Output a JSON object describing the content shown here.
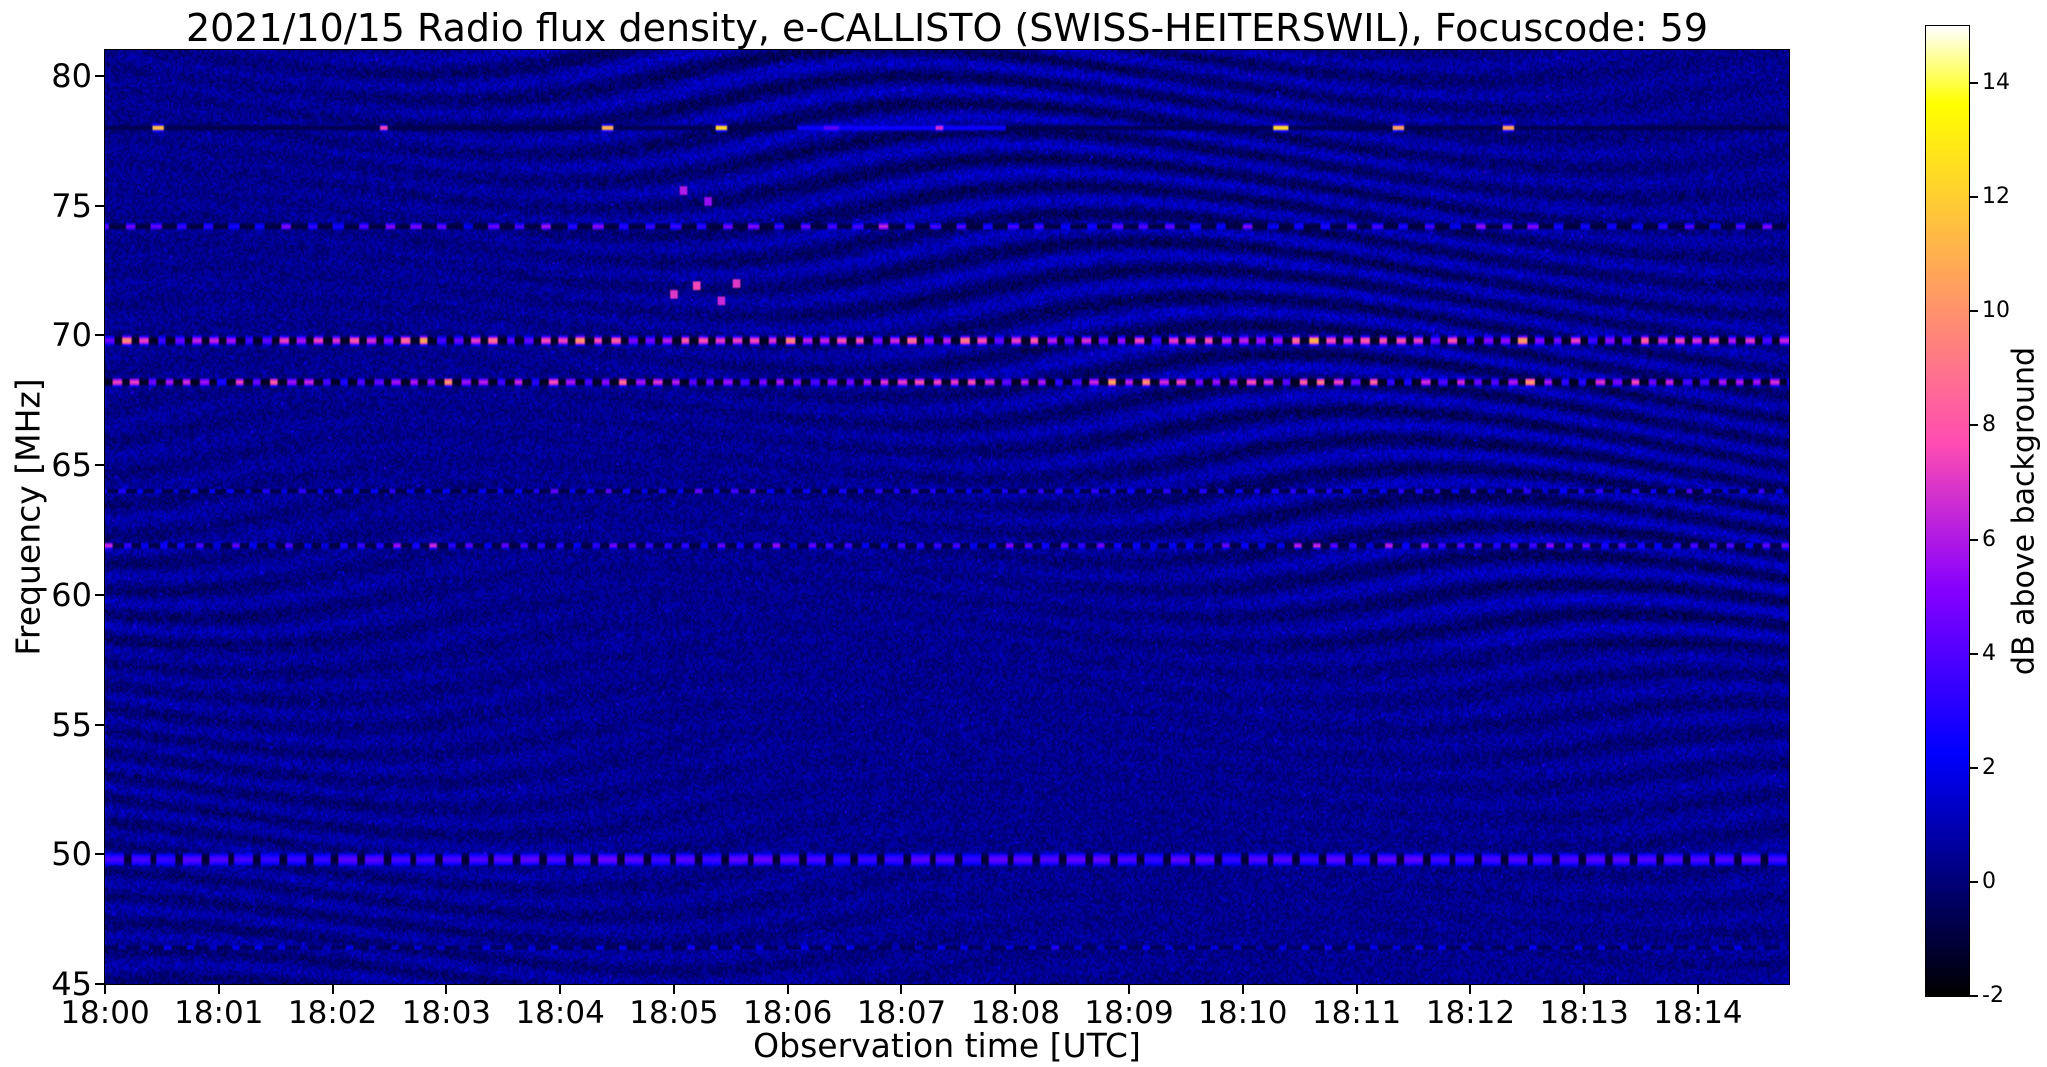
{
  "chart_data": {
    "type": "heatmap",
    "title": "2021/10/15  Radio flux density, e-CALLISTO (SWISS-HEITERSWIL), Focuscode: 59",
    "xlabel": "Observation time [UTC]",
    "ylabel": "Frequency [MHz]",
    "colorbar_label": "dB above background",
    "x_ticks": [
      "18:00",
      "18:01",
      "18:02",
      "18:03",
      "18:04",
      "18:05",
      "18:06",
      "18:07",
      "18:08",
      "18:09",
      "18:10",
      "18:11",
      "18:12",
      "18:13",
      "18:14"
    ],
    "x_tick_seconds": [
      0,
      60,
      120,
      180,
      240,
      300,
      360,
      420,
      480,
      540,
      600,
      660,
      720,
      780,
      840
    ],
    "x_range_s": [
      0,
      888
    ],
    "y_range_mhz": [
      45,
      81
    ],
    "y_ticks": [
      80,
      75,
      70,
      65,
      60,
      55,
      50,
      45
    ],
    "value_range_db": [
      -2,
      15
    ],
    "colorbar_ticks": [
      14,
      12,
      10,
      8,
      6,
      4,
      2,
      0,
      -2
    ],
    "colormap": "gnuplot2",
    "background": {
      "base_db": 0.35,
      "noise_db": 1.5,
      "fringe_amp_db": 1.0,
      "fringe_spacing_mhz": 1.05
    },
    "spectral_lines": [
      {
        "freq_mhz": 78.0,
        "type": "bursts",
        "line_db": -0.7,
        "halfwidth_mhz": 0.14
      },
      {
        "freq_mhz": 74.2,
        "type": "dashed",
        "period_s": 13.7,
        "duty": 0.38,
        "mean_db": 3.6,
        "var_db": 1.8,
        "boost_db": 2.2,
        "gap_db": -1.0,
        "halfwidth_mhz": 0.14,
        "phase_s": 3
      },
      {
        "freq_mhz": 69.8,
        "type": "dashed",
        "period_s": 9.2,
        "duty": 0.52,
        "mean_db": 6.3,
        "var_db": 2.6,
        "boost_db": 3.0,
        "gap_db": -1.5,
        "halfwidth_mhz": 0.2,
        "phase_s": 0
      },
      {
        "freq_mhz": 68.2,
        "type": "dashed",
        "period_s": 9.2,
        "duty": 0.48,
        "mean_db": 5.6,
        "var_db": 2.6,
        "boost_db": 3.0,
        "gap_db": -1.5,
        "halfwidth_mhz": 0.18,
        "phase_s": 5
      },
      {
        "freq_mhz": 64.0,
        "type": "dashed",
        "period_s": 9.5,
        "duty": 0.36,
        "mean_db": 2.6,
        "var_db": 1.0,
        "boost_db": 1.2,
        "gap_db": -0.9,
        "halfwidth_mhz": 0.12,
        "phase_s": 2
      },
      {
        "freq_mhz": 61.9,
        "type": "dashed",
        "period_s": 9.5,
        "duty": 0.42,
        "mean_db": 3.2,
        "var_db": 1.5,
        "boost_db": 2.5,
        "gap_db": -0.9,
        "halfwidth_mhz": 0.14,
        "phase_s": 9
      },
      {
        "freq_mhz": 49.8,
        "type": "dashed",
        "period_s": 13.7,
        "duty": 0.72,
        "mean_db": 3.8,
        "var_db": 0.6,
        "boost_db": 0.5,
        "gap_db": -1.2,
        "halfwidth_mhz": 0.28,
        "phase_s": 0
      },
      {
        "freq_mhz": 46.4,
        "type": "dashed",
        "period_s": 12.0,
        "duty": 0.3,
        "mean_db": 1.8,
        "var_db": 0.8,
        "boost_db": 0.8,
        "gap_db": -0.6,
        "halfwidth_mhz": 0.1,
        "phase_s": 5
      }
    ],
    "bursts_78mhz": [
      {
        "t_s": 28,
        "db": 12.5,
        "width_s": 6
      },
      {
        "t_s": 147,
        "db": 8.0,
        "width_s": 5
      },
      {
        "t_s": 265,
        "db": 12.0,
        "width_s": 6
      },
      {
        "t_s": 325,
        "db": 13.5,
        "width_s": 7
      },
      {
        "t_s": 383,
        "db": 4.5,
        "width_s": 8
      },
      {
        "t_s": 420,
        "db": 2.8,
        "width_s": 110
      },
      {
        "t_s": 440,
        "db": 7.0,
        "width_s": 5
      },
      {
        "t_s": 620,
        "db": 13.5,
        "width_s": 8
      },
      {
        "t_s": 682,
        "db": 11.5,
        "width_s": 6
      },
      {
        "t_s": 740,
        "db": 11.5,
        "width_s": 6
      }
    ],
    "speckles": [
      {
        "t_s": 300,
        "f_mhz": 71.6,
        "db": 7.0
      },
      {
        "t_s": 312,
        "f_mhz": 71.9,
        "db": 7.5
      },
      {
        "t_s": 325,
        "f_mhz": 71.3,
        "db": 6.5
      },
      {
        "t_s": 333,
        "f_mhz": 72.0,
        "db": 7.0
      },
      {
        "t_s": 305,
        "f_mhz": 75.6,
        "db": 6.0
      },
      {
        "t_s": 318,
        "f_mhz": 75.2,
        "db": 5.5
      }
    ]
  }
}
